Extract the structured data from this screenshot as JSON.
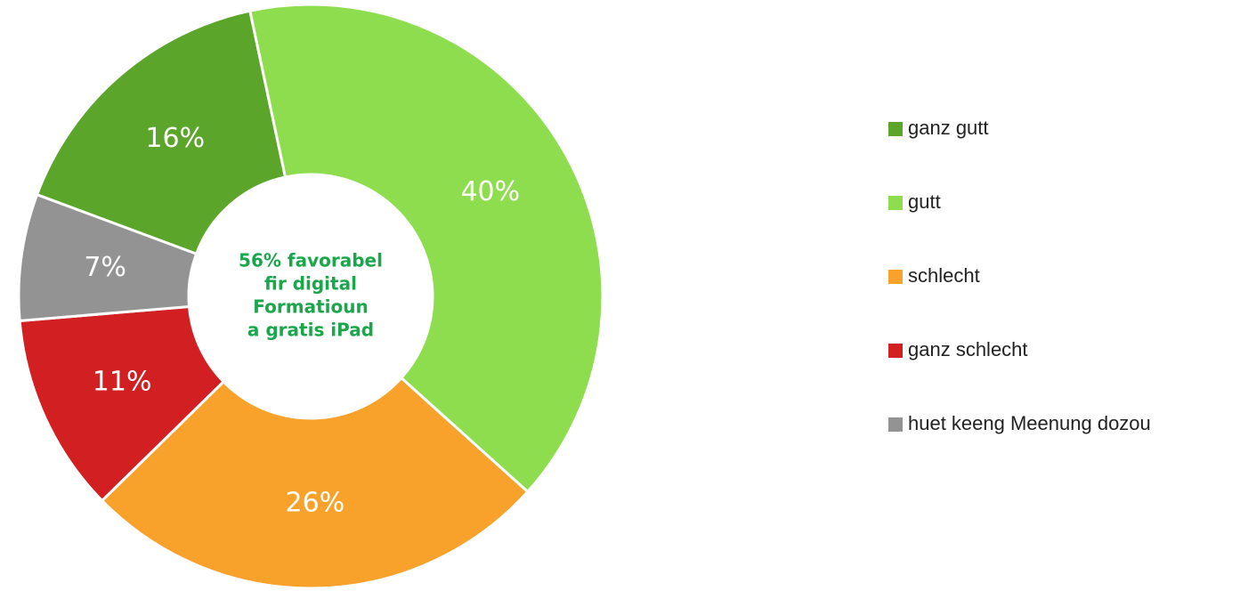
{
  "chart_data": {
    "type": "pie",
    "categories": [
      "ganz gutt",
      "gutt",
      "schlecht",
      "ganz schlecht",
      "huet keeng Meenung dozou"
    ],
    "values": [
      16,
      40,
      26,
      11,
      7
    ],
    "value_labels": [
      "16%",
      "40%",
      "26%",
      "11%",
      "7%"
    ],
    "colors": [
      "#5aa52a",
      "#8edd4e",
      "#f8a22c",
      "#d21f22",
      "#939393"
    ],
    "center_text": [
      "56% favorabel",
      "fir digital",
      "Formatioun",
      "a gratis iPad"
    ],
    "legend": "right"
  }
}
